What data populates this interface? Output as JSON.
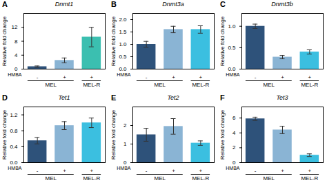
{
  "chart_data": [
    {
      "type": "bar",
      "panel_label": "A",
      "title": "Dnmt1",
      "ylabel": "Relative fold change",
      "xlabel": "HMBA",
      "categories": [
        "-",
        "+",
        "+"
      ],
      "groups": [
        "MEL",
        "MEL",
        "MEL-R"
      ],
      "values": [
        0.7,
        2.5,
        9.2
      ],
      "errors": [
        0.2,
        0.7,
        2.8
      ],
      "colors": [
        "#2e527a",
        "#8ab4d4",
        "#3bbfb0"
      ],
      "ylim": [
        0,
        16
      ],
      "yticks": [
        0,
        4,
        8,
        12
      ]
    },
    {
      "type": "bar",
      "panel_label": "B",
      "title": "Dnmt3a",
      "ylabel": "Relative fold change",
      "xlabel": "HMBA",
      "categories": [
        "-",
        "+",
        "+"
      ],
      "groups": [
        "MEL",
        "MEL",
        "MEL-R"
      ],
      "values": [
        1.0,
        1.6,
        1.6
      ],
      "errors": [
        0.12,
        0.13,
        0.15
      ],
      "colors": [
        "#2e527a",
        "#8ab4d4",
        "#3bbfe0"
      ],
      "ylim": [
        0,
        2.25
      ],
      "yticks": [
        {
          "value": 0,
          "label": "0.0"
        },
        0.5,
        {
          "value": 1.0,
          "label": "1.0"
        },
        1.5,
        {
          "value": 2.0,
          "label": "2.0"
        }
      ]
    },
    {
      "type": "bar",
      "panel_label": "C",
      "title": "Dnmt3b",
      "ylabel": "Relative fold change",
      "xlabel": "HMBA",
      "categories": [
        "-",
        "+",
        "+"
      ],
      "groups": [
        "MEL",
        "MEL",
        "MEL-R"
      ],
      "values": [
        1.0,
        0.28,
        0.4
      ],
      "errors": [
        0.05,
        0.04,
        0.05
      ],
      "colors": [
        "#2e527a",
        "#8ab4d4",
        "#3bbfe0"
      ],
      "ylim": [
        0,
        1.3
      ],
      "yticks": [
        {
          "value": 0,
          "label": "0.0"
        },
        0.5,
        {
          "value": 1.0,
          "label": "1.0"
        }
      ]
    },
    {
      "type": "bar",
      "panel_label": "D",
      "title": "Tet1",
      "ylabel": "Relative fold change",
      "xlabel": "HMBA",
      "categories": [
        "-",
        "+",
        "+"
      ],
      "groups": [
        "MEL",
        "MEL",
        "MEL-R"
      ],
      "values": [
        0.55,
        0.93,
        1.0
      ],
      "errors": [
        0.08,
        0.1,
        0.12
      ],
      "colors": [
        "#2e527a",
        "#8ab4d4",
        "#3bbfe0"
      ],
      "ylim": [
        0,
        1.4
      ],
      "yticks": [
        {
          "value": 0,
          "label": "0.0"
        },
        0.4,
        0.8,
        1.2
      ]
    },
    {
      "type": "bar",
      "panel_label": "E",
      "title": "Tet2",
      "ylabel": "Relative fold change",
      "xlabel": "HMBA",
      "categories": [
        "-",
        "+",
        "+"
      ],
      "groups": [
        "MEL",
        "MEL",
        "MEL-R"
      ],
      "values": [
        1.5,
        1.95,
        1.05
      ],
      "errors": [
        0.35,
        0.42,
        0.12
      ],
      "colors": [
        "#2e527a",
        "#8ab4d4",
        "#3bbfe0"
      ],
      "ylim": [
        0,
        3.0
      ],
      "yticks": [
        0,
        1,
        2
      ]
    },
    {
      "type": "bar",
      "panel_label": "F",
      "title": "Tet3",
      "ylabel": "Relative fold change",
      "xlabel": "HMBA",
      "categories": [
        "-",
        "+",
        "+"
      ],
      "groups": [
        "MEL",
        "MEL",
        "MEL-R"
      ],
      "values": [
        5.9,
        4.4,
        1.0
      ],
      "errors": [
        0.22,
        0.5,
        0.18
      ],
      "colors": [
        "#2e527a",
        "#8ab4d4",
        "#3bbfe0"
      ],
      "ylim": [
        0,
        7.5
      ],
      "yticks": [
        0,
        2,
        4,
        6
      ]
    }
  ]
}
